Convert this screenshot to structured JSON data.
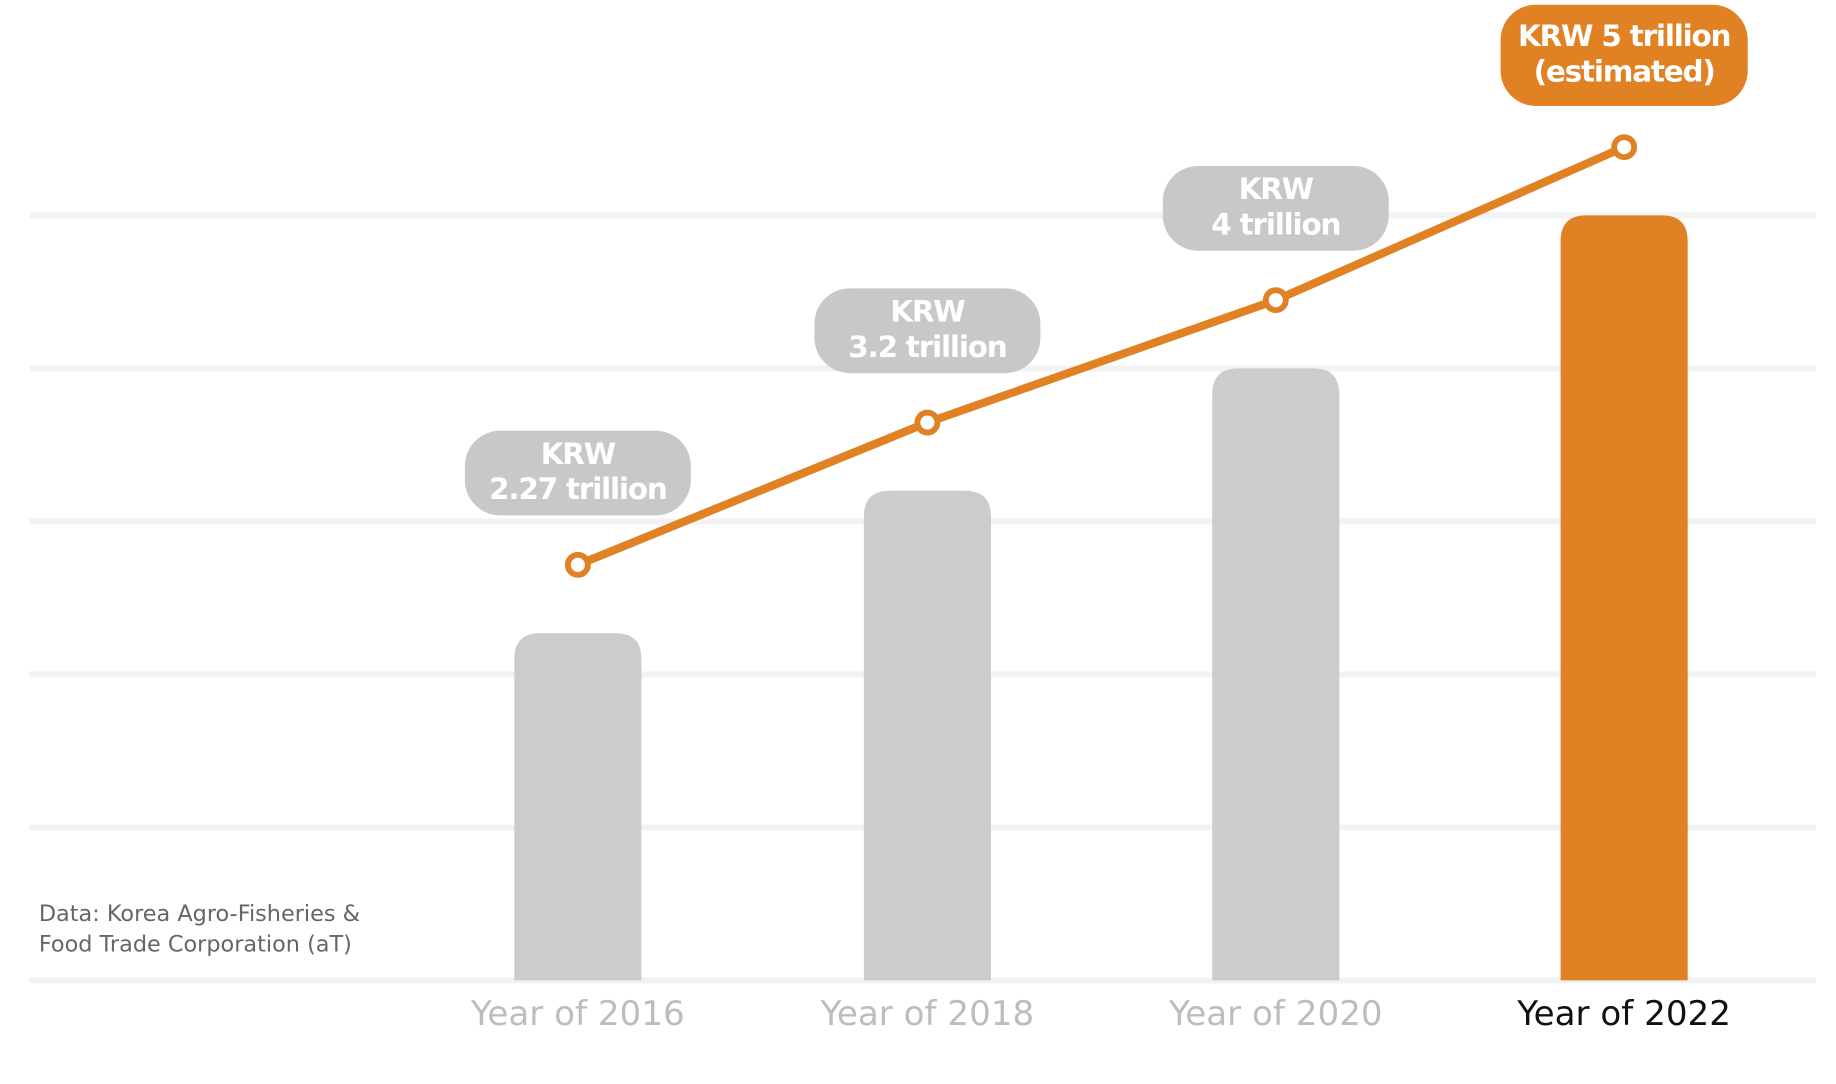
{
  "chart_data": {
    "type": "bar-line",
    "categories": [
      "Year of 2016",
      "Year of 2018",
      "Year of 2020",
      "Year of 2022"
    ],
    "values": [
      2.27,
      3.2,
      4,
      5
    ],
    "value_labels": [
      [
        "KRW",
        "2.27 trillion"
      ],
      [
        "KRW",
        "3.2 trillion"
      ],
      [
        "KRW",
        "4 trillion"
      ],
      [
        "KRW 5 trillion",
        "(estimated)"
      ]
    ],
    "bar_colors": [
      "#cccccc",
      "#cccccc",
      "#cccccc",
      "#e08224"
    ],
    "label_box_colors": [
      "#c8c8c8",
      "#c8c8c8",
      "#c8c8c8",
      "#e08224"
    ],
    "category_label_colors": [
      "#bdbdbd",
      "#bdbdbd",
      "#bdbdbd",
      "#111111"
    ],
    "line_color": "#e08224",
    "ylim": [
      0,
      5
    ],
    "yticks": [
      0,
      1,
      2,
      3,
      4,
      5
    ],
    "grid": true,
    "source": [
      "Data: Korea Agro-Fisheries &",
      "Food Trade Corporation (aT)"
    ]
  }
}
